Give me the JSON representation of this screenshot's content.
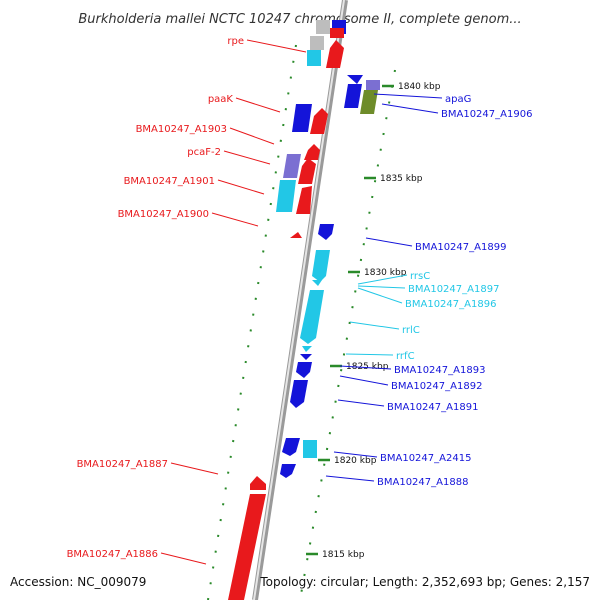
{
  "title": "Burkholderia mallei NCTC 10247 chromosome II, complete genom...",
  "accession": "Accession: NC_009079",
  "topology": "Topology: circular; Length: 2,352,693 bp; Genes: 2,157",
  "colors": {
    "forward": "#e8191c",
    "reverse": "#1414d9",
    "rna": "#22c7e6",
    "lavender": "#7b6fd2",
    "olive": "#6e8c2a",
    "grey": "#bdbdbd",
    "tick": "#2a8a2a"
  },
  "ticks": [
    {
      "label": "1840 kbp"
    },
    {
      "label": "1835 kbp"
    },
    {
      "label": "1830 kbp"
    },
    {
      "label": "1825 kbp"
    },
    {
      "label": "1820 kbp"
    },
    {
      "label": "1815 kbp"
    }
  ],
  "left_labels": [
    {
      "text": "rpe",
      "color": "#e8191c"
    },
    {
      "text": "paaK",
      "color": "#e8191c"
    },
    {
      "text": "BMA10247_A1903",
      "color": "#e8191c"
    },
    {
      "text": "pcaF-2",
      "color": "#e8191c"
    },
    {
      "text": "BMA10247_A1901",
      "color": "#e8191c"
    },
    {
      "text": "BMA10247_A1900",
      "color": "#e8191c"
    },
    {
      "text": "BMA10247_A1887",
      "color": "#e8191c"
    },
    {
      "text": "BMA10247_A1886",
      "color": "#e8191c"
    }
  ],
  "right_labels": [
    {
      "text": "apaG",
      "color": "#1414d9"
    },
    {
      "text": "BMA10247_A1906",
      "color": "#1414d9"
    },
    {
      "text": "BMA10247_A1899",
      "color": "#1414d9"
    },
    {
      "text": "rrsC",
      "color": "#22c7e6"
    },
    {
      "text": "BMA10247_A1897",
      "color": "#22c7e6"
    },
    {
      "text": "BMA10247_A1896",
      "color": "#22c7e6"
    },
    {
      "text": "rrlC",
      "color": "#22c7e6"
    },
    {
      "text": "rrfC",
      "color": "#22c7e6"
    },
    {
      "text": "BMA10247_A1893",
      "color": "#1414d9"
    },
    {
      "text": "BMA10247_A1892",
      "color": "#1414d9"
    },
    {
      "text": "BMA10247_A1891",
      "color": "#1414d9"
    },
    {
      "text": "BMA10247_A2415",
      "color": "#1414d9"
    },
    {
      "text": "BMA10247_A1888",
      "color": "#1414d9"
    }
  ]
}
